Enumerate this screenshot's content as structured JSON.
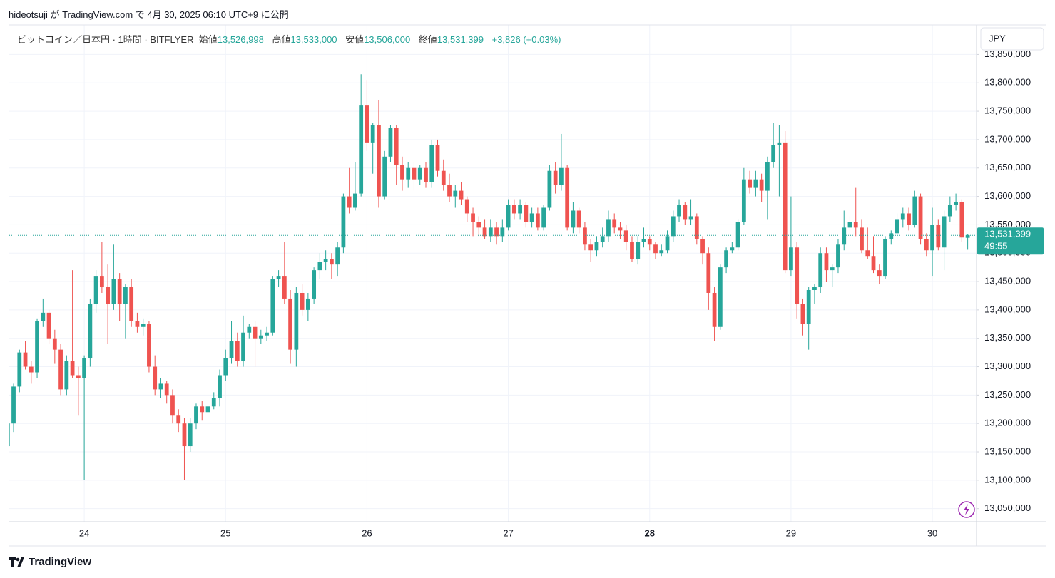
{
  "header": {
    "text": "hideotsuji が TradingView.com で 4月 30, 2025 06:10 UTC+9 に公開"
  },
  "chart_data": {
    "type": "candlestick",
    "title": "ビットコイン／日本円 · 1時間 · BITFLYER",
    "ohlc_labels": {
      "open": "始値",
      "high": "高値",
      "low": "安値",
      "close": "終値"
    },
    "ohlc_values": {
      "open": "13,526,998",
      "high": "13,533,000",
      "low": "13,506,000",
      "close": "13,531,399"
    },
    "change": "+3,826 (+0.03%)",
    "currency": "JPY",
    "last_price_label": "13,531,399",
    "countdown": "49:55",
    "up_color": "#26a69a",
    "down_color": "#ef5350",
    "open": [
      13160000,
      13200000,
      13265000,
      13325000,
      13300000,
      13290000,
      13380000,
      13395000,
      13350000,
      13330000,
      13260000,
      13310000,
      13285000,
      13280000,
      13315000,
      13410000,
      13460000,
      13440000,
      13410000,
      13455000,
      13410000,
      13440000,
      13380000,
      13370000,
      13375000,
      13300000,
      13260000,
      13270000,
      13250000,
      13215000,
      13200000,
      13160000,
      13200000,
      13230000,
      13220000,
      13230000,
      13245000,
      13285000,
      13315000,
      13345000,
      13310000,
      13360000,
      13370000,
      13350000,
      13355000,
      13360000,
      13455000,
      13460000,
      13420000,
      13330000,
      13430000,
      13400000,
      13420000,
      13470000,
      13485000,
      13490000,
      13480000,
      13510000,
      13600000,
      13580000,
      13605000,
      13760000,
      13695000,
      13725000,
      13600000,
      13670000,
      13720000,
      13655000,
      13630000,
      13650000,
      13630000,
      13650000,
      13625000,
      13690000,
      13645000,
      13620000,
      13600000,
      13610000,
      13595000,
      13570000,
      13555000,
      13545000,
      13530000,
      13545000,
      13530000,
      13545000,
      13585000,
      13570000,
      13585000,
      13555000,
      13570000,
      13545000,
      13580000,
      13645000,
      13620000,
      13650000,
      13545000,
      13575000,
      13545000,
      13515000,
      13505000,
      13520000,
      13530000,
      13560000,
      13545000,
      13540000,
      13520000,
      13490000,
      13520000,
      13525000,
      13515000,
      13500000,
      13505000,
      13530000,
      13565000,
      13585000,
      13560000,
      13565000,
      13525000,
      13500000,
      13430000,
      13370000,
      13475000,
      13505000,
      13510000,
      13555000,
      13630000,
      13615000,
      13630000,
      13610000,
      13660000,
      13690000,
      13695000,
      13470000,
      13510000,
      13410000,
      13375000,
      13435000,
      13440000,
      13500000,
      13470000,
      13475000,
      13515000,
      13545000,
      13555000,
      13545000,
      13505000,
      13495000,
      13470000,
      13460000,
      13525000,
      13535000,
      13560000,
      13570000,
      13550000,
      13600000,
      13525000,
      13505000,
      13550000,
      13510000,
      13565000,
      13585000,
      13590000,
      13526998
    ],
    "high": [
      13205000,
      13270000,
      13330000,
      13345000,
      13310000,
      13385000,
      13420000,
      13400000,
      13365000,
      13340000,
      13320000,
      13470000,
      13300000,
      13320000,
      13420000,
      13470000,
      13520000,
      13480000,
      13515000,
      13465000,
      13445000,
      13455000,
      13395000,
      13385000,
      13380000,
      13320000,
      13280000,
      13275000,
      13260000,
      13225000,
      13210000,
      13210000,
      13235000,
      13240000,
      13240000,
      13255000,
      13295000,
      13330000,
      13380000,
      13360000,
      13390000,
      13375000,
      13380000,
      13365000,
      13370000,
      13460000,
      13470000,
      13520000,
      13435000,
      13440000,
      13445000,
      13430000,
      13475000,
      13500000,
      13505000,
      13500000,
      13520000,
      13605000,
      13650000,
      13660000,
      13815000,
      13805000,
      13730000,
      13770000,
      13680000,
      13725000,
      13725000,
      13670000,
      13660000,
      13660000,
      13655000,
      13660000,
      13700000,
      13700000,
      13665000,
      13640000,
      13620000,
      13625000,
      13600000,
      13580000,
      13565000,
      13560000,
      13560000,
      13555000,
      13560000,
      13595000,
      13595000,
      13595000,
      13590000,
      13580000,
      13580000,
      13585000,
      13655000,
      13660000,
      13710000,
      13655000,
      13590000,
      13580000,
      13555000,
      13525000,
      13530000,
      13545000,
      13575000,
      13570000,
      13555000,
      13550000,
      13530000,
      13530000,
      13545000,
      13530000,
      13520000,
      13515000,
      13540000,
      13575000,
      13595000,
      13590000,
      13595000,
      13570000,
      13530000,
      13510000,
      13440000,
      13480000,
      13510000,
      13520000,
      13560000,
      13650000,
      13645000,
      13645000,
      13640000,
      13670000,
      13730000,
      13725000,
      13715000,
      13600000,
      13520000,
      13420000,
      13440000,
      13445000,
      13510000,
      13510000,
      13480000,
      13525000,
      13575000,
      13565000,
      13615000,
      13560000,
      13545000,
      13530000,
      13480000,
      13530000,
      13540000,
      13570000,
      13580000,
      13580000,
      13610000,
      13605000,
      13535000,
      13580000,
      13560000,
      13575000,
      13600000,
      13605000,
      13595000,
      13533000
    ],
    "low": [
      13145000,
      13185000,
      13255000,
      13295000,
      13270000,
      13280000,
      13370000,
      13340000,
      13305000,
      13250000,
      13250000,
      13280000,
      13215000,
      13100000,
      13300000,
      13395000,
      13430000,
      13340000,
      13400000,
      13380000,
      13350000,
      13370000,
      13360000,
      13355000,
      13290000,
      13250000,
      13245000,
      13235000,
      13200000,
      13185000,
      13100000,
      13150000,
      13190000,
      13205000,
      13210000,
      13225000,
      13230000,
      13275000,
      13305000,
      13300000,
      13300000,
      13350000,
      13300000,
      13340000,
      13345000,
      13355000,
      13440000,
      13410000,
      13305000,
      13300000,
      13390000,
      13380000,
      13410000,
      13455000,
      13470000,
      13455000,
      13460000,
      13500000,
      13570000,
      13575000,
      13600000,
      13680000,
      13640000,
      13580000,
      13595000,
      13660000,
      13620000,
      13610000,
      13615000,
      13610000,
      13620000,
      13615000,
      13615000,
      13635000,
      13610000,
      13590000,
      13580000,
      13585000,
      13555000,
      13530000,
      13530000,
      13525000,
      13520000,
      13515000,
      13520000,
      13540000,
      13560000,
      13560000,
      13545000,
      13545000,
      13540000,
      13540000,
      13575000,
      13605000,
      13610000,
      13540000,
      13535000,
      13535000,
      13505000,
      13485000,
      13495000,
      13510000,
      13520000,
      13535000,
      13525000,
      13505000,
      13485000,
      13480000,
      13510000,
      13505000,
      13490000,
      13495000,
      13500000,
      13520000,
      13555000,
      13550000,
      13550000,
      13515000,
      13480000,
      13400000,
      13345000,
      13365000,
      13465000,
      13500000,
      13505000,
      13550000,
      13605000,
      13600000,
      13590000,
      13560000,
      13650000,
      13600000,
      13465000,
      13460000,
      13385000,
      13355000,
      13330000,
      13410000,
      13430000,
      13450000,
      13440000,
      13465000,
      13505000,
      13530000,
      13530000,
      13500000,
      13490000,
      13465000,
      13445000,
      13455000,
      13515000,
      13525000,
      13545000,
      13540000,
      13545000,
      13515000,
      13495000,
      13460000,
      13505000,
      13470000,
      13555000,
      13575000,
      13520000,
      13506000
    ],
    "close": [
      13200000,
      13265000,
      13325000,
      13300000,
      13290000,
      13380000,
      13395000,
      13350000,
      13330000,
      13260000,
      13310000,
      13285000,
      13280000,
      13315000,
      13410000,
      13460000,
      13440000,
      13410000,
      13455000,
      13410000,
      13440000,
      13380000,
      13370000,
      13375000,
      13300000,
      13260000,
      13270000,
      13250000,
      13215000,
      13200000,
      13160000,
      13200000,
      13230000,
      13220000,
      13230000,
      13245000,
      13285000,
      13315000,
      13345000,
      13310000,
      13360000,
      13370000,
      13350000,
      13355000,
      13360000,
      13455000,
      13460000,
      13420000,
      13330000,
      13430000,
      13400000,
      13420000,
      13470000,
      13485000,
      13490000,
      13480000,
      13510000,
      13600000,
      13580000,
      13605000,
      13760000,
      13695000,
      13725000,
      13600000,
      13670000,
      13720000,
      13655000,
      13630000,
      13650000,
      13630000,
      13650000,
      13625000,
      13690000,
      13645000,
      13620000,
      13600000,
      13610000,
      13595000,
      13570000,
      13555000,
      13545000,
      13530000,
      13545000,
      13530000,
      13545000,
      13585000,
      13570000,
      13585000,
      13555000,
      13570000,
      13545000,
      13580000,
      13645000,
      13620000,
      13650000,
      13545000,
      13575000,
      13545000,
      13515000,
      13505000,
      13520000,
      13530000,
      13560000,
      13545000,
      13540000,
      13520000,
      13490000,
      13520000,
      13525000,
      13515000,
      13500000,
      13505000,
      13530000,
      13565000,
      13585000,
      13560000,
      13565000,
      13525000,
      13500000,
      13430000,
      13370000,
      13475000,
      13505000,
      13510000,
      13555000,
      13630000,
      13615000,
      13630000,
      13610000,
      13660000,
      13690000,
      13695000,
      13470000,
      13510000,
      13410000,
      13375000,
      13435000,
      13440000,
      13500000,
      13470000,
      13475000,
      13515000,
      13545000,
      13555000,
      13545000,
      13505000,
      13495000,
      13470000,
      13460000,
      13525000,
      13535000,
      13560000,
      13570000,
      13550000,
      13600000,
      13525000,
      13505000,
      13550000,
      13510000,
      13565000,
      13585000,
      13590000,
      13527573,
      13531399
    ],
    "xlim": [
      0.27,
      164.5
    ],
    "xticks": [
      {
        "value": 13,
        "label": "24"
      },
      {
        "value": 37,
        "label": "25"
      },
      {
        "value": 61,
        "label": "26"
      },
      {
        "value": 85,
        "label": "27"
      },
      {
        "value": 109,
        "label": "28"
      },
      {
        "value": 133,
        "label": "29"
      },
      {
        "value": 157,
        "label": "30"
      }
    ],
    "bold_xtick": "28",
    "ylim": [
      13027000,
      13902000
    ],
    "yticks": [
      {
        "value": 13050000,
        "label": "13,050,000"
      },
      {
        "value": 13100000,
        "label": "13,100,000"
      },
      {
        "value": 13150000,
        "label": "13,150,000"
      },
      {
        "value": 13200000,
        "label": "13,200,000"
      },
      {
        "value": 13250000,
        "label": "13,250,000"
      },
      {
        "value": 13300000,
        "label": "13,300,000"
      },
      {
        "value": 13350000,
        "label": "13,350,000"
      },
      {
        "value": 13400000,
        "label": "13,400,000"
      },
      {
        "value": 13450000,
        "label": "13,450,000"
      },
      {
        "value": 13500000,
        "label": "13,500,000"
      },
      {
        "value": 13550000,
        "label": "13,550,000"
      },
      {
        "value": 13600000,
        "label": "13,600,000"
      },
      {
        "value": 13650000,
        "label": "13,650,000"
      },
      {
        "value": 13700000,
        "label": "13,700,000"
      },
      {
        "value": 13750000,
        "label": "13,750,000"
      },
      {
        "value": 13800000,
        "label": "13,800,000"
      },
      {
        "value": 13850000,
        "label": "13,850,000"
      }
    ],
    "grid": true
  },
  "footer": {
    "brand": "TradingView"
  }
}
